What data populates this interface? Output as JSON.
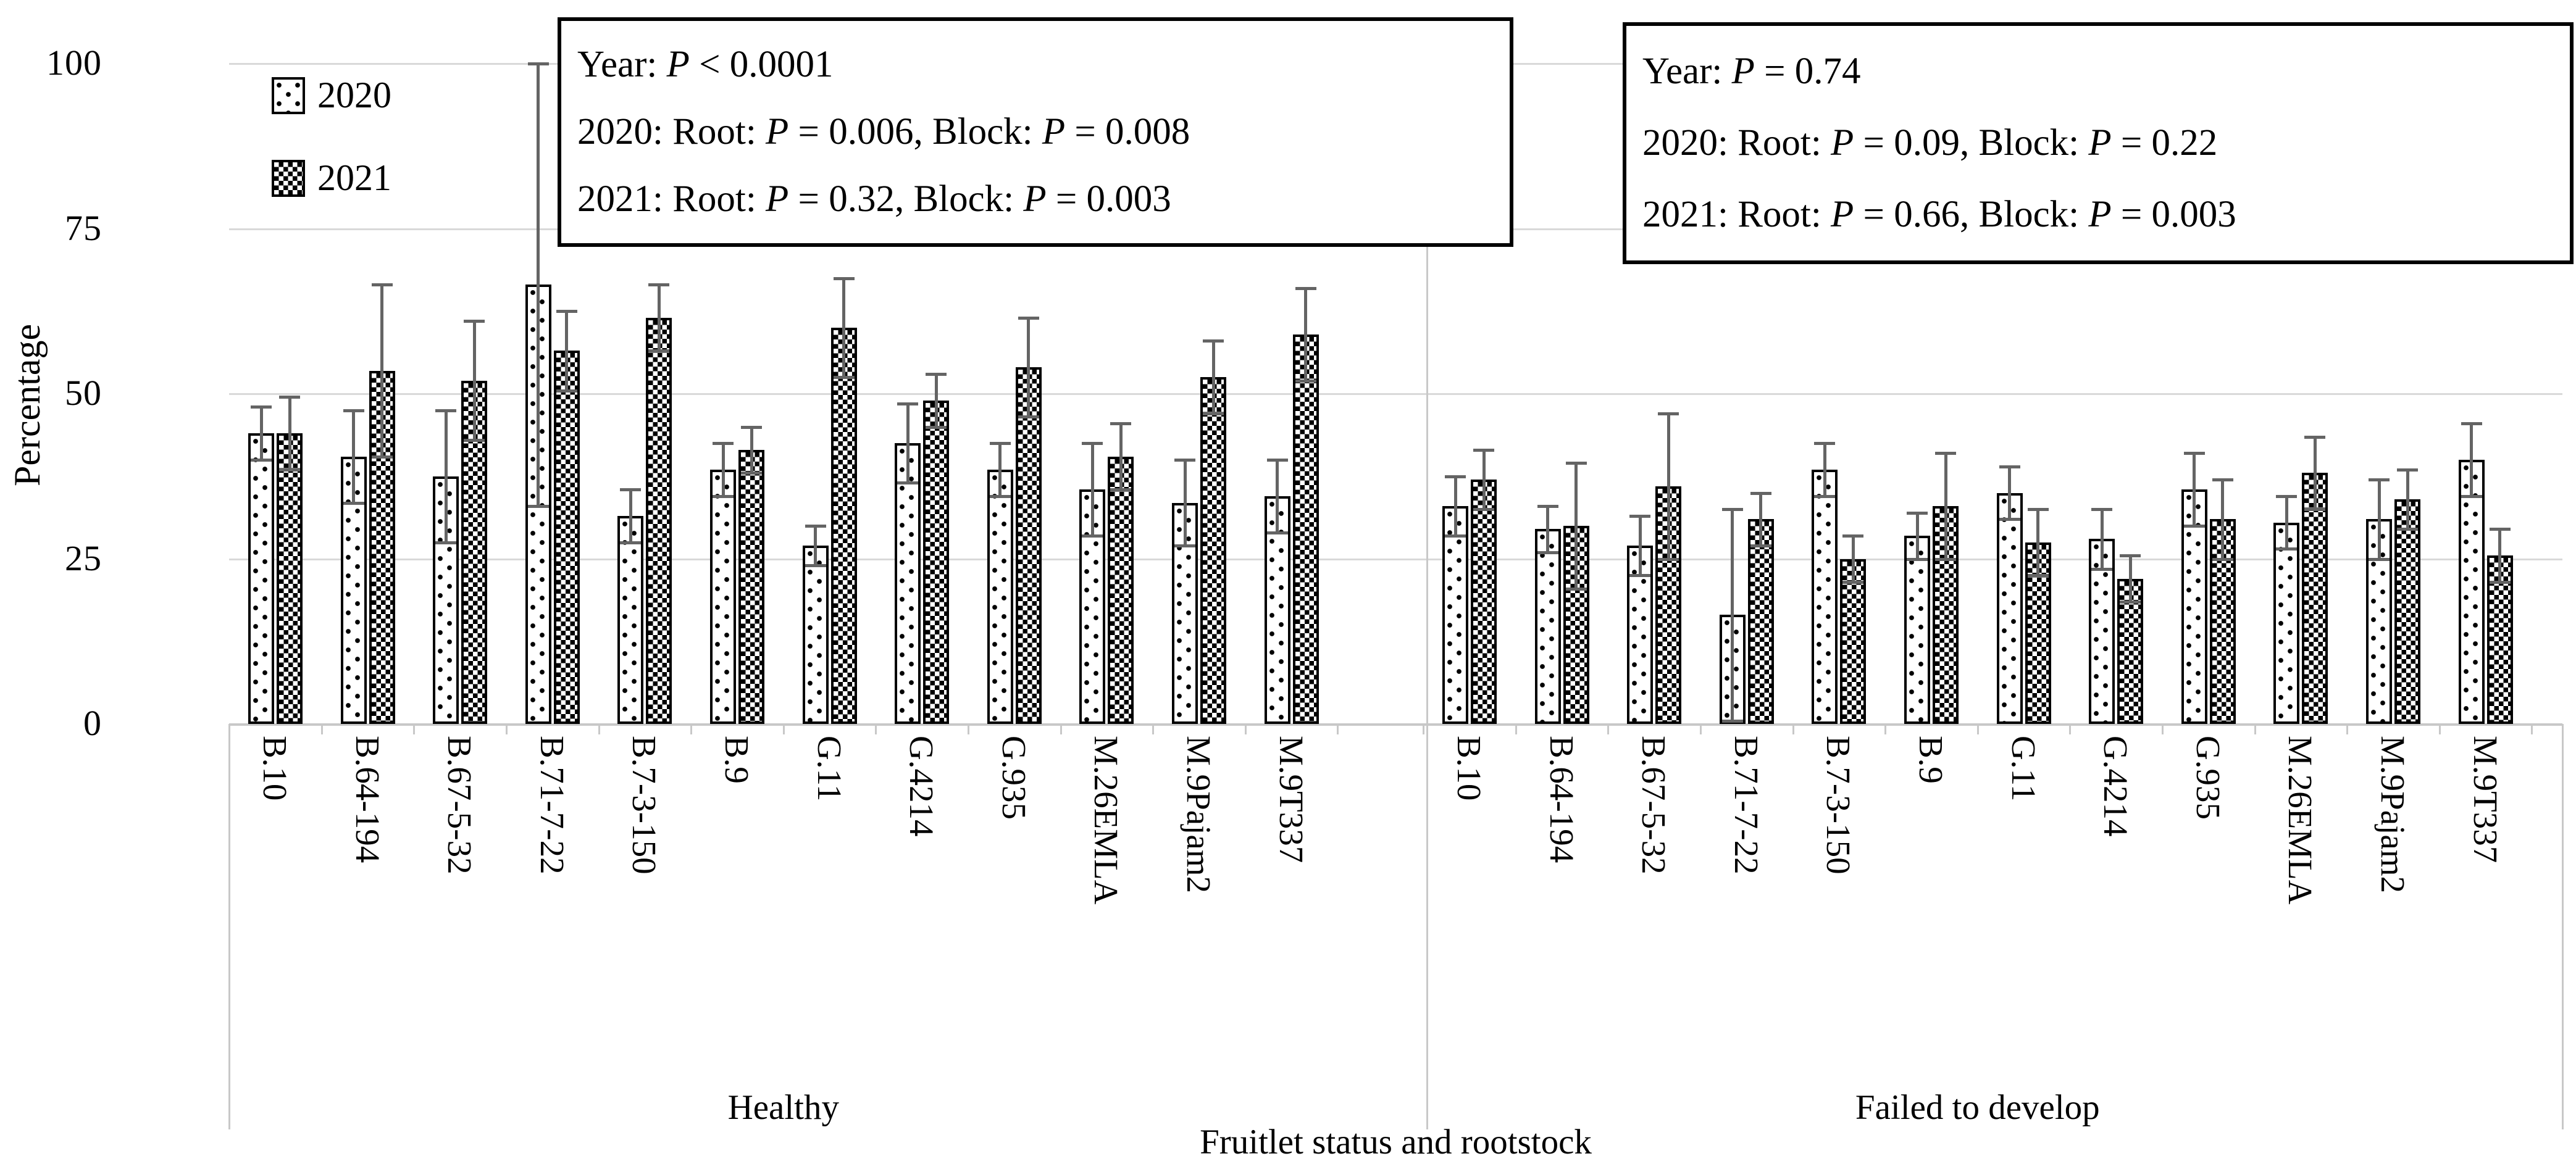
{
  "chart_data": {
    "type": "bar",
    "title": "",
    "xlabel": "Fruitlet status and rootstock",
    "ylabel": "Percentage",
    "ylim": [
      0,
      100
    ],
    "yticks": [
      0,
      25,
      50,
      75,
      100
    ],
    "grid": "horizontal",
    "legend_position": "top-left-inside",
    "legend": [
      "2020",
      "2021"
    ],
    "groups": [
      {
        "label": "Healthy",
        "categories": [
          "B.10",
          "B.64-194",
          "B.67-5-32",
          "B.71-7-22",
          "B.7-3-150",
          "B.9",
          "G.11",
          "G.4214",
          "G.935",
          "M.26EMLA",
          "M.9Pajam2",
          "M.9T337"
        ],
        "series": [
          {
            "name": "2020",
            "values": [
              44,
              40.5,
              37.5,
              66.5,
              31.5,
              38.5,
              27,
              42.5,
              38.5,
              35.5,
              33.5,
              34.5
            ],
            "errors": [
              4,
              7,
              10,
              33.5,
              4,
              4,
              3,
              6,
              4,
              7,
              6.5,
              5.5
            ]
          },
          {
            "name": "2021",
            "values": [
              44,
              53.5,
              52,
              56.5,
              61.5,
              41.5,
              60,
              49,
              54,
              40.5,
              52.5,
              59
            ],
            "errors": [
              5.5,
              13,
              9,
              6,
              5,
              3.5,
              7.5,
              4,
              7.5,
              5,
              5.5,
              7
            ]
          }
        ]
      },
      {
        "label": "Failed to develop",
        "categories": [
          "B.10",
          "B.64-194",
          "B.67-5-32",
          "B.71-7-22",
          "B.7-3-150",
          "B.9",
          "G.11",
          "G.4214",
          "G.935",
          "M.26EMLA",
          "M.9Pajam2",
          "M.9T337"
        ],
        "series": [
          {
            "name": "2020",
            "values": [
              33,
              29.5,
              27,
              16.5,
              38.5,
              28.5,
              35,
              28,
              35.5,
              30.5,
              31,
              40
            ],
            "errors": [
              4.5,
              3.5,
              4.5,
              16,
              4,
              3.5,
              4,
              4.5,
              5.5,
              4,
              6,
              5.5
            ]
          },
          {
            "name": "2021",
            "values": [
              37,
              30,
              36,
              31,
              25,
              33,
              27.5,
              22,
              31,
              38,
              34,
              25.5
            ],
            "errors": [
              4.5,
              9.5,
              11,
              4,
              3.5,
              8,
              5,
              3.5,
              6,
              5.5,
              4.5,
              4
            ]
          }
        ]
      }
    ],
    "annotations": [
      {
        "lines": [
          "Year: P < 0.0001",
          "2020: Root: P = 0.006, Block: P = 0.008",
          "2021: Root: P = 0.32, Block: P = 0.003"
        ]
      },
      {
        "lines": [
          "Year: P = 0.74",
          "2020: Root: P = 0.09, Block: P = 0.22",
          "2021: Root: P = 0.66, Block: P = 0.003"
        ]
      }
    ],
    "colors": {
      "bar_fill": "#ffffff",
      "bar_border": "#000000",
      "gridline": "#d9d9d9",
      "axis_line": "#c8c8c8",
      "error_bar": "#646464",
      "text": "#000000"
    },
    "patterns": {
      "2020": "dotted",
      "2021": "checkerboard"
    }
  }
}
